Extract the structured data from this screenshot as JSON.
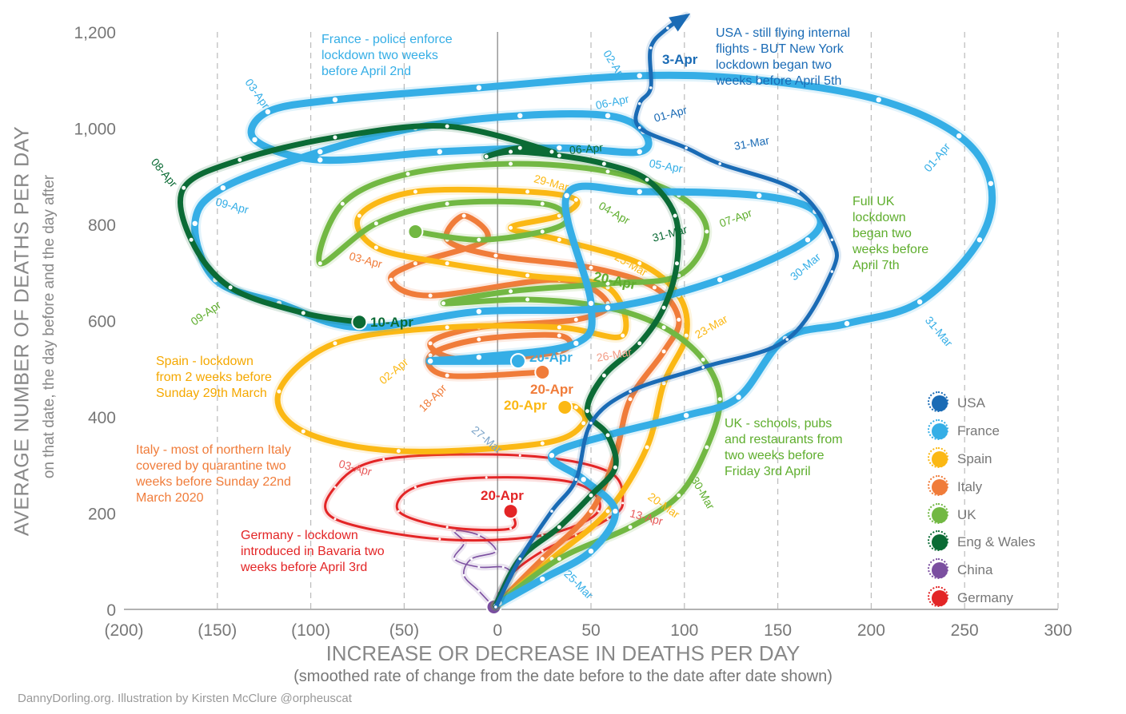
{
  "chart_data": {
    "type": "line",
    "title": "",
    "xlabel": "INCREASE OR DECREASE IN DEATHS PER DAY",
    "xlabel_sub": "(smoothed rate of change from the date before to the date after date shown)",
    "ylabel": "AVERAGE NUMBER OF DEATHS PER DAY",
    "ylabel_sub": "on that date, the day before and the day after",
    "xlim": [
      -200,
      300
    ],
    "ylim": [
      0,
      1200
    ],
    "x_ticks": [
      -200,
      -150,
      -100,
      -50,
      0,
      50,
      100,
      150,
      200,
      250,
      300
    ],
    "x_tick_labels": [
      "(200)",
      "(150)",
      "(100)",
      "(50)",
      "0",
      "50",
      "100",
      "150",
      "200",
      "250",
      "300"
    ],
    "y_ticks": [
      0,
      200,
      400,
      600,
      800,
      1000,
      1200
    ],
    "y_tick_labels": [
      "0",
      "200",
      "400",
      "600",
      "800",
      "1,000",
      "1,200"
    ],
    "grid": "vertical dashed",
    "legend_position": "bottom-right",
    "series": [
      {
        "name": "China",
        "color": "#7b4fa0",
        "width": 1.6,
        "points": [
          [
            -2,
            5
          ],
          [
            -10,
            38
          ],
          [
            -18,
            71
          ],
          [
            -14,
            105
          ],
          [
            -1,
            121
          ],
          [
            -10,
            154
          ],
          [
            -23,
            163
          ],
          [
            -18,
            138
          ],
          [
            -23,
            105
          ],
          [
            -10,
            88
          ],
          [
            3,
            88
          ],
          [
            7,
            71
          ],
          [
            1,
            38
          ],
          [
            -2,
            5
          ]
        ]
      },
      {
        "name": "Germany",
        "color": "#e32526",
        "width": 3,
        "points": [
          [
            -1,
            8
          ],
          [
            7,
            71
          ],
          [
            24,
            121
          ],
          [
            42,
            154
          ],
          [
            59,
            188
          ],
          [
            67,
            221
          ],
          [
            59,
            287
          ],
          [
            12,
            320
          ],
          [
            -61,
            312
          ],
          [
            -87,
            254
          ],
          [
            -87,
            188
          ],
          [
            -31,
            146
          ],
          [
            24,
            154
          ],
          [
            54,
            204
          ],
          [
            42,
            262
          ],
          [
            -6,
            274
          ],
          [
            -44,
            254
          ],
          [
            -53,
            204
          ],
          [
            -27,
            171
          ],
          [
            7,
            168
          ],
          [
            7,
            204
          ]
        ]
      },
      {
        "name": "Italy",
        "color": "#f07c3a",
        "width": 7,
        "points": [
          [
            -1,
            8
          ],
          [
            24,
            105
          ],
          [
            50,
            204
          ],
          [
            63,
            320
          ],
          [
            71,
            437
          ],
          [
            89,
            536
          ],
          [
            97,
            602
          ],
          [
            84,
            669
          ],
          [
            50,
            710
          ],
          [
            -1,
            735
          ],
          [
            -27,
            768
          ],
          [
            -18,
            818
          ],
          [
            -6,
            768
          ],
          [
            -44,
            719
          ],
          [
            -57,
            685
          ],
          [
            -36,
            652
          ],
          [
            33,
            685
          ],
          [
            59,
            636
          ],
          [
            42,
            602
          ],
          [
            -10,
            586
          ],
          [
            -36,
            553
          ],
          [
            -18,
            519
          ],
          [
            33,
            536
          ],
          [
            33,
            569
          ],
          [
            -10,
            561
          ],
          [
            -36,
            528
          ],
          [
            -27,
            486
          ],
          [
            24,
            493
          ]
        ]
      },
      {
        "name": "Spain",
        "color": "#fbb814",
        "width": 7,
        "points": [
          [
            -1,
            8
          ],
          [
            29,
            105
          ],
          [
            59,
            204
          ],
          [
            80,
            337
          ],
          [
            89,
            470
          ],
          [
            101,
            569
          ],
          [
            97,
            652
          ],
          [
            76,
            719
          ],
          [
            33,
            768
          ],
          [
            7,
            793
          ],
          [
            33,
            818
          ],
          [
            42,
            851
          ],
          [
            16,
            868
          ],
          [
            -44,
            868
          ],
          [
            -74,
            818
          ],
          [
            -65,
            752
          ],
          [
            -27,
            719
          ],
          [
            16,
            694
          ],
          [
            59,
            669
          ],
          [
            67,
            569
          ],
          [
            33,
            586
          ],
          [
            -27,
            586
          ],
          [
            -87,
            553
          ],
          [
            -117,
            453
          ],
          [
            -104,
            370
          ],
          [
            -53,
            329
          ],
          [
            24,
            345
          ],
          [
            46,
            387
          ],
          [
            42,
            420
          ],
          [
            36,
            420
          ]
        ]
      },
      {
        "name": "UK",
        "color": "#72b843",
        "width": 7,
        "points": [
          [
            -1,
            8
          ],
          [
            33,
            105
          ],
          [
            71,
            171
          ],
          [
            97,
            237
          ],
          [
            112,
            337
          ],
          [
            119,
            437
          ],
          [
            110,
            519
          ],
          [
            89,
            586
          ],
          [
            59,
            627
          ],
          [
            16,
            644
          ],
          [
            -29,
            636
          ],
          [
            7,
            661
          ],
          [
            59,
            677
          ],
          [
            97,
            694
          ],
          [
            112,
            785
          ],
          [
            97,
            860
          ],
          [
            59,
            910
          ],
          [
            7,
            926
          ],
          [
            -48,
            905
          ],
          [
            -83,
            843
          ],
          [
            -95,
            719
          ],
          [
            -65,
            802
          ],
          [
            -27,
            843
          ],
          [
            24,
            843
          ],
          [
            37,
            810
          ],
          [
            24,
            785
          ],
          [
            -10,
            768
          ],
          [
            -44,
            785
          ]
        ]
      },
      {
        "name": "France",
        "color": "#35aee6",
        "width": 9,
        "points": [
          [
            1,
            13
          ],
          [
            24,
            63
          ],
          [
            50,
            121
          ],
          [
            63,
            204
          ],
          [
            46,
            270
          ],
          [
            29,
            320
          ],
          [
            59,
            362
          ],
          [
            101,
            403
          ],
          [
            129,
            441
          ],
          [
            154,
            563
          ],
          [
            187,
            594
          ],
          [
            226,
            639
          ],
          [
            258,
            768
          ],
          [
            264,
            885
          ],
          [
            247,
            984
          ],
          [
            204,
            1059
          ],
          [
            140,
            1100
          ],
          [
            76,
            1109
          ],
          [
            -10,
            1084
          ],
          [
            -87,
            1059
          ],
          [
            -123,
            1034
          ],
          [
            -130,
            976
          ],
          [
            -95,
            934
          ],
          [
            -31,
            951
          ],
          [
            33,
            959
          ],
          [
            76,
            951
          ],
          [
            78,
            993
          ],
          [
            59,
            1026
          ],
          [
            12,
            1026
          ],
          [
            -44,
            1001
          ],
          [
            -95,
            951
          ],
          [
            -147,
            876
          ],
          [
            -162,
            802
          ],
          [
            -151,
            685
          ],
          [
            -117,
            636
          ],
          [
            -74,
            586
          ],
          [
            -10,
            619
          ],
          [
            59,
            627
          ],
          [
            119,
            685
          ],
          [
            166,
            768
          ],
          [
            170,
            827
          ],
          [
            140,
            860
          ],
          [
            76,
            868
          ],
          [
            37,
            860
          ],
          [
            50,
            636
          ],
          [
            42,
            553
          ],
          [
            -10,
            524
          ],
          [
            -36,
            516
          ],
          [
            11,
            516
          ]
        ]
      },
      {
        "name": "Eng & Wales",
        "color": "#0b6b35",
        "width": 7,
        "points": [
          [
            -1,
            8
          ],
          [
            12,
            105
          ],
          [
            33,
            171
          ],
          [
            50,
            237
          ],
          [
            63,
            295
          ],
          [
            59,
            362
          ],
          [
            48,
            412
          ],
          [
            57,
            486
          ],
          [
            76,
            553
          ],
          [
            89,
            627
          ],
          [
            96,
            719
          ],
          [
            95,
            818
          ],
          [
            80,
            893
          ],
          [
            57,
            926
          ],
          [
            33,
            943
          ],
          [
            7,
            951
          ],
          [
            -6,
            941
          ],
          [
            12,
            959
          ],
          [
            29,
            951
          ],
          [
            -27,
            1004
          ],
          [
            -87,
            981
          ],
          [
            -138,
            934
          ],
          [
            -168,
            876
          ],
          [
            -164,
            768
          ],
          [
            -143,
            669
          ],
          [
            -104,
            616
          ],
          [
            -74,
            597
          ]
        ]
      },
      {
        "name": "USA",
        "color": "#1a6bb5",
        "width": 5,
        "points": [
          [
            -1,
            5
          ],
          [
            12,
            105
          ],
          [
            29,
            204
          ],
          [
            42,
            270
          ],
          [
            50,
            387
          ],
          [
            71,
            453
          ],
          [
            110,
            503
          ],
          [
            155,
            561
          ],
          [
            179,
            702
          ],
          [
            179,
            768
          ],
          [
            161,
            868
          ],
          [
            119,
            926
          ],
          [
            101,
            959
          ],
          [
            76,
            1001
          ],
          [
            76,
            1051
          ],
          [
            82,
            1084
          ],
          [
            82,
            1167
          ],
          [
            91,
            1208
          ],
          [
            101,
            1233
          ]
        ]
      }
    ],
    "legend": [
      "USA",
      "France",
      "Spain",
      "Italy",
      "UK",
      "Eng & Wales",
      "China",
      "Germany"
    ],
    "highlight_labels": {
      "usa": "3-Apr",
      "eng_wales": "10-Apr",
      "france": "20-Apr",
      "italy": "20-Apr",
      "spain": "20-Apr",
      "uk": "20-Apr",
      "germany": "20-Apr"
    },
    "date_labels": [
      "03-Apr",
      "02-Apr",
      "06-Apr",
      "05-Apr",
      "09-Apr",
      "01-Apr",
      "31-Mar",
      "31-Mar",
      "30-Mar",
      "27-Mar",
      "25-Mar",
      "01-Apr",
      "08-Apr",
      "09-Apr",
      "06-Apr",
      "31-Mar",
      "07-Apr",
      "04-Apr",
      "30-Mar",
      "29-Mar",
      "25-Mar",
      "23-Mar",
      "02-Apr",
      "18-Apr",
      "20-Mar",
      "03-Apr",
      "26-Mar",
      "13-Apr",
      "03-Apr"
    ],
    "annotations": {
      "france": "France - police enforce\nlockdown two weeks\nbefore April 2nd",
      "usa": "USA - still flying internal\nflights - BUT New York\nlockdown began two\nweeks before April 5th",
      "uk_full": "Full UK\nlockdown\nbegan two\nweeks before\nApril 7th",
      "spain": "Spain - lockdown\nfrom 2 weeks before\nSunday 29th March",
      "italy": "Italy - most of northern Italy\ncovered by quarantine two\nweeks before Sunday 22nd\nMarch 2020",
      "germany": "Germany - lockdown\nintroduced in Bavaria two\nweeks before April 3rd",
      "uk_schools": "UK - schools, pubs\nand restaurants from\ntwo weeks before\nFriday 3rd April"
    }
  },
  "credit": "DannyDorling.org. Illustration by Kirsten McClure @orpheuscat"
}
